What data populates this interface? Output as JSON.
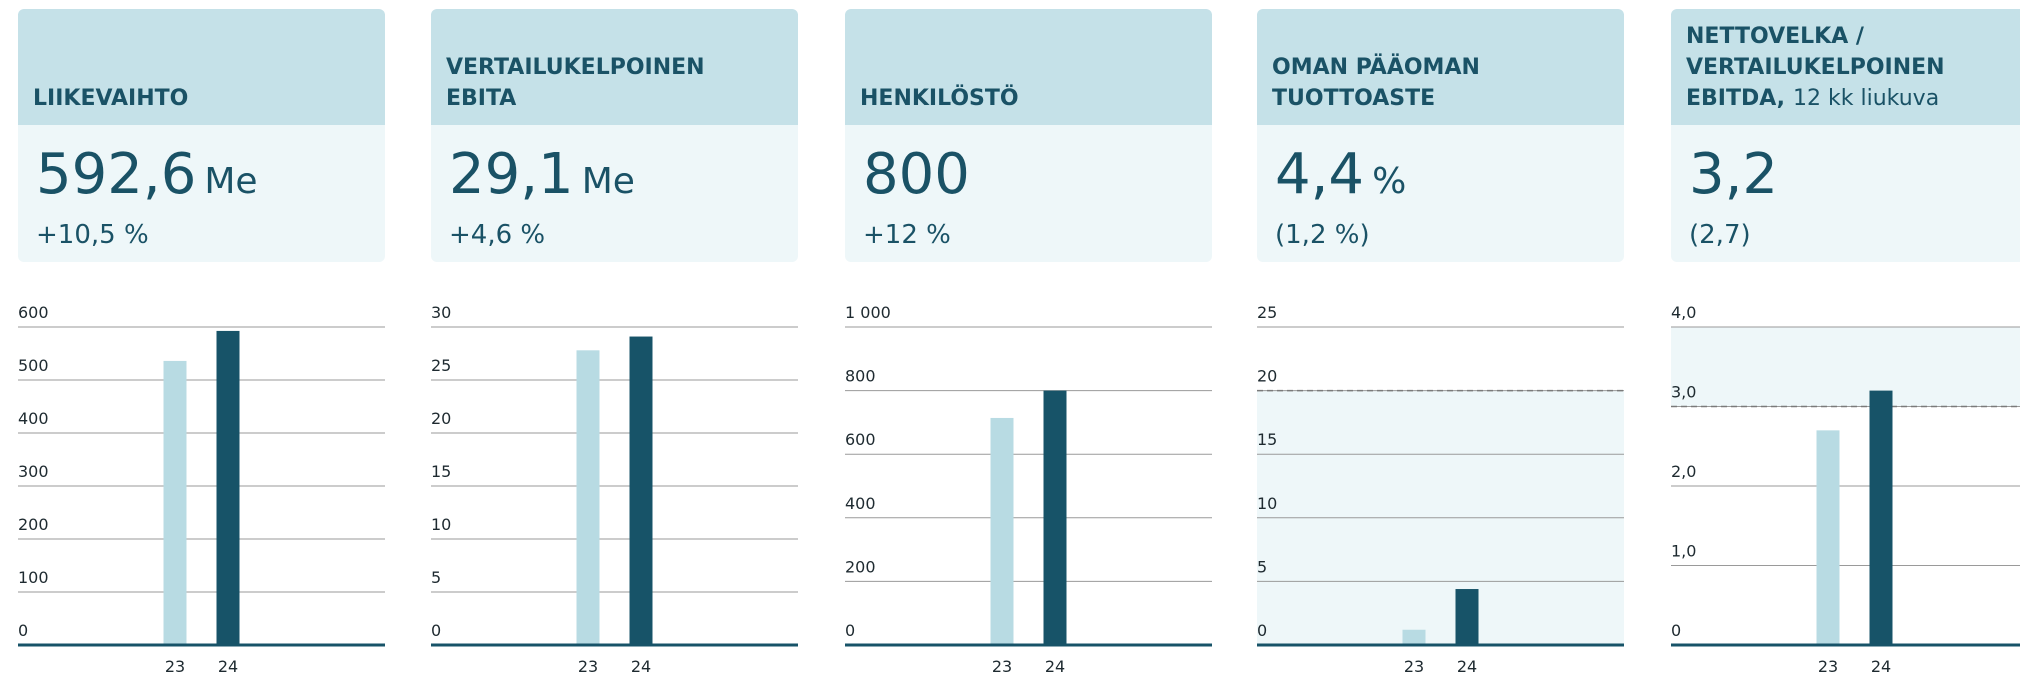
{
  "chart_data": [
    {
      "type": "bar",
      "title": [
        "LIIKEVAIHTO"
      ],
      "value": "592,6",
      "unit": "Me",
      "change": "+10,5 %",
      "categories": [
        "23",
        "24"
      ],
      "values": [
        536,
        592.6
      ],
      "colors": [
        "#b8dbe3",
        "#175368"
      ],
      "ylim": [
        0,
        600
      ],
      "yticks": [
        0,
        100,
        200,
        300,
        400,
        500,
        600
      ],
      "grid": true
    },
    {
      "type": "bar",
      "title": [
        "VERTAILUKELPOINEN",
        "EBITA"
      ],
      "value": "29,1",
      "unit": "Me",
      "change": "+4,6 %",
      "categories": [
        "23",
        "24"
      ],
      "values": [
        27.8,
        29.1
      ],
      "colors": [
        "#b8dbe3",
        "#175368"
      ],
      "ylim": [
        0,
        30
      ],
      "yticks": [
        0,
        5,
        10,
        15,
        20,
        25,
        30
      ],
      "grid": true
    },
    {
      "type": "bar",
      "title": [
        "HENKILÖSTÖ"
      ],
      "value": "800",
      "change": "+12 %",
      "categories": [
        "23",
        "24"
      ],
      "values": [
        714,
        800
      ],
      "colors": [
        "#b8dbe3",
        "#175368"
      ],
      "ylim": [
        0,
        1000
      ],
      "yticks": [
        0,
        200,
        400,
        600,
        800,
        {
          "value": 1000,
          "label": "1 000"
        }
      ],
      "grid": true
    },
    {
      "type": "bar",
      "title": [
        "OMAN PÄÄOMAN",
        "TUOTTOASTE"
      ],
      "value": "4,4",
      "unit": "%",
      "change": "(1,2 %)",
      "categories": [
        "23",
        "24"
      ],
      "values": [
        1.2,
        4.4
      ],
      "colors": [
        "#b8dbe3",
        "#175368"
      ],
      "ylim": [
        0,
        25
      ],
      "yticks": [
        0,
        5,
        10,
        15,
        20,
        25
      ],
      "grid": true,
      "band": [
        0,
        20
      ],
      "target": 20
    },
    {
      "type": "bar",
      "title": [
        "NETTOVELKA /",
        "VERTAILUKELPOINEN",
        "EBITDA,"
      ],
      "title_note": "12 kk liukuva",
      "value": "3,2",
      "change": "(2,7)",
      "categories": [
        "23",
        "24"
      ],
      "values": [
        2.7,
        3.2
      ],
      "colors": [
        "#b8dbe3",
        "#175368"
      ],
      "ylim": [
        0,
        4
      ],
      "yticks": [
        0,
        {
          "value": 1,
          "label": "1,0"
        },
        {
          "value": 2,
          "label": "2,0"
        },
        {
          "value": 3,
          "label": "3,0"
        },
        {
          "value": 4,
          "label": "4,0"
        }
      ],
      "grid": true,
      "band": [
        3,
        4
      ],
      "target": 3
    }
  ]
}
